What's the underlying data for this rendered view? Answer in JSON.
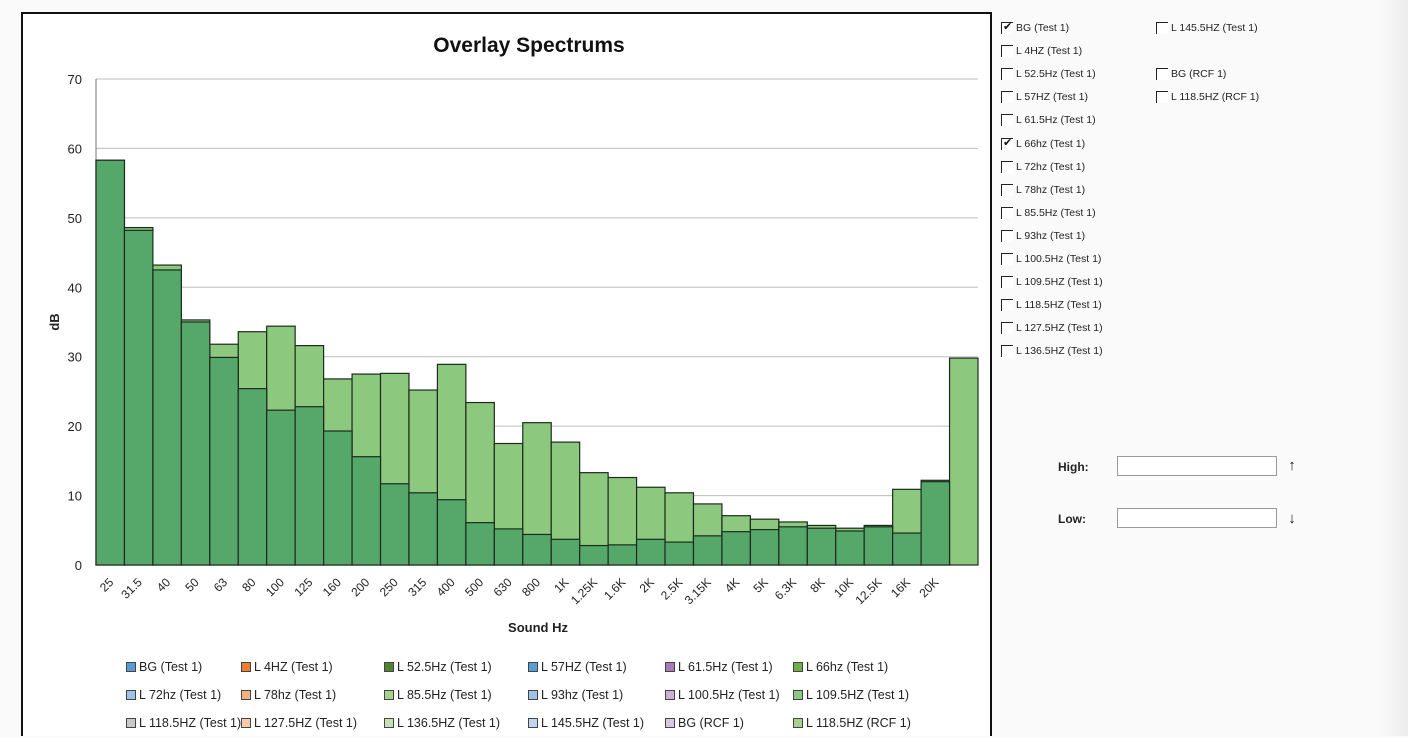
{
  "chart_data": {
    "type": "bar",
    "title": "Overlay Spectrums",
    "xlabel": "Sound Hz",
    "ylabel": "dB",
    "ylim": [
      0,
      70
    ],
    "yticks": [
      0,
      10,
      20,
      30,
      40,
      50,
      60,
      70
    ],
    "grid": true,
    "legend_position": "bottom",
    "categories": [
      "25",
      "31.5",
      "40",
      "50",
      "63",
      "80",
      "100",
      "125",
      "160",
      "200",
      "250",
      "315",
      "400",
      "500",
      "630",
      "800",
      "1K",
      "1.25K",
      "1.6K",
      "2K",
      "2.5K",
      "3.15K",
      "4K",
      "5K",
      "6.3K",
      "8K",
      "10K",
      "12.5K",
      "16K",
      "20K",
      ""
    ],
    "series": [
      {
        "name": "BG (Test 1)",
        "color": "#8cc97f",
        "values": [
          58.3,
          48.6,
          43.2,
          35.3,
          31.8,
          33.6,
          34.4,
          31.6,
          26.8,
          27.5,
          27.6,
          25.2,
          28.9,
          23.4,
          17.5,
          20.5,
          17.7,
          13.3,
          12.6,
          11.2,
          10.4,
          8.8,
          7.1,
          6.6,
          6.2,
          5.7,
          5.3,
          5.7,
          10.9,
          12.2,
          29.8
        ]
      },
      {
        "name": "L 66hz (Test 1)",
        "color": "#55a86a",
        "values": [
          58.3,
          48.2,
          42.5,
          35.0,
          29.9,
          25.4,
          22.3,
          22.8,
          19.3,
          15.6,
          11.7,
          10.4,
          9.4,
          6.1,
          5.2,
          4.4,
          3.7,
          2.8,
          2.9,
          3.7,
          3.3,
          4.2,
          4.8,
          5.1,
          5.5,
          5.3,
          4.9,
          5.5,
          4.6,
          12.0,
          null
        ]
      }
    ]
  },
  "legend": [
    [
      "BG (Test 1)",
      "L 4HZ (Test 1)",
      "L 52.5Hz (Test 1)",
      "L 57HZ (Test 1)",
      "L 61.5Hz (Test 1)",
      "L 66hz (Test 1)"
    ],
    [
      "L 72hz (Test 1)",
      "L 78hz (Test 1)",
      "L 85.5Hz (Test 1)",
      "L 93hz (Test 1)",
      "L 100.5Hz (Test 1)",
      "L 109.5HZ (Test 1)"
    ],
    [
      "L 118.5HZ (Test 1)",
      "L 127.5HZ (Test 1)",
      "L 136.5HZ (Test 1)",
      "L 145.5HZ (Test 1)",
      "BG (RCF 1)",
      "L 118.5HZ (RCF 1)"
    ]
  ],
  "legend_colors": [
    [
      "#5b9bd5",
      "#ed7d31",
      "#548235",
      "#4fa3d8",
      "#a67bb5",
      "#70ad47"
    ],
    [
      "#9dc3e6",
      "#f4b183",
      "#a9d18e",
      "#9dc3e6",
      "#c9b2d6",
      "#8cc97f"
    ],
    [
      "#c9c9c9",
      "#f8cbad",
      "#c5e0b4",
      "#bdd7ee",
      "#d9c6e0",
      "#a9d18e"
    ]
  ],
  "series_toggles": {
    "col1": [
      {
        "label": "BG (Test 1)",
        "checked": true
      },
      {
        "label": "L 4HZ (Test 1)",
        "checked": false
      },
      {
        "label": "L 52.5Hz (Test 1)",
        "checked": false
      },
      {
        "label": "L 57HZ (Test 1)",
        "checked": false
      },
      {
        "label": "L 61.5Hz (Test 1)",
        "checked": false
      },
      {
        "label": "L 66hz (Test 1)",
        "checked": true
      },
      {
        "label": "L 72hz (Test 1)",
        "checked": false
      },
      {
        "label": "L 78hz (Test 1)",
        "checked": false
      },
      {
        "label": "L 85.5Hz (Test 1)",
        "checked": false
      },
      {
        "label": "L 93hz (Test 1)",
        "checked": false
      },
      {
        "label": "L 100.5Hz (Test 1)",
        "checked": false
      },
      {
        "label": "L 109.5HZ (Test 1)",
        "checked": false
      },
      {
        "label": "L 118.5HZ (Test 1)",
        "checked": false
      },
      {
        "label": "L 127.5HZ (Test 1)",
        "checked": false
      },
      {
        "label": "L 136.5HZ (Test 1)",
        "checked": false
      }
    ],
    "col2": [
      {
        "label": "L 145.5HZ (Test 1)",
        "checked": false
      },
      {
        "label": "BG (RCF 1)",
        "checked": false
      },
      {
        "label": "L 118.5HZ (RCF 1)",
        "checked": false
      }
    ]
  },
  "range": {
    "high_label": "High:",
    "low_label": "Low:",
    "high_value": "",
    "low_value": "",
    "up_icon": "↑",
    "down_icon": "↓"
  }
}
